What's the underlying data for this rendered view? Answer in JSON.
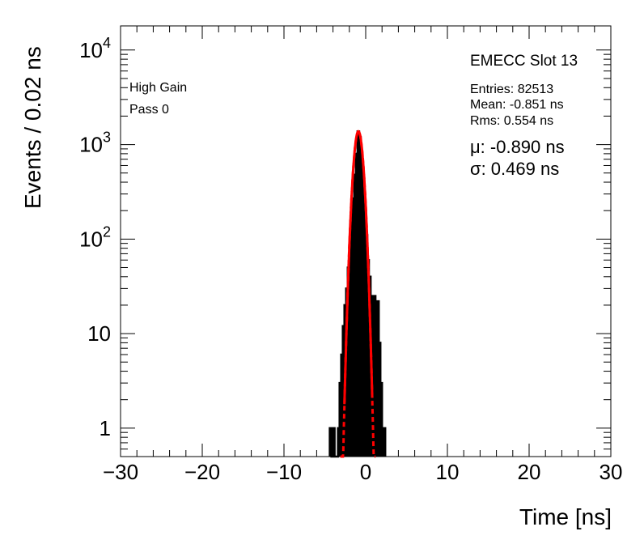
{
  "chart_data": {
    "type": "histogram",
    "title": "EMECC Slot 13",
    "xlabel": "Time [ns]",
    "ylabel": "Events / 0.02 ns",
    "xlim": [
      -30,
      30
    ],
    "ylim": [
      0.5,
      18000
    ],
    "yscale": "log",
    "x_ticks": [
      "−30",
      "−20",
      "−10",
      "0",
      "10",
      "20",
      "30"
    ],
    "x_tick_values": [
      -30,
      -20,
      -10,
      0,
      10,
      20,
      30
    ],
    "y_ticks": [
      {
        "value": 1,
        "label": "1"
      },
      {
        "value": 10,
        "label": "10"
      },
      {
        "value": 100,
        "base": "10",
        "exp": "2"
      },
      {
        "value": 1000,
        "base": "10",
        "exp": "3"
      },
      {
        "value": 10000,
        "base": "10",
        "exp": "4"
      }
    ],
    "annotations_left": [
      "High Gain",
      "Pass 0"
    ],
    "stats": {
      "entries": "Entries: 82513",
      "mean": "Mean: -0.851 ns",
      "rms": "Rms: 0.554 ns"
    },
    "fit": {
      "mu_text": "μ: -0.890 ns",
      "sigma_text": "σ: 0.469 ns",
      "mu": -0.89,
      "sigma": 0.469,
      "amplitude": 1380,
      "color": "#ff0000",
      "solid_range": [
        -2.6,
        0.8
      ],
      "dashed_range": [
        -3.1,
        1.2
      ]
    },
    "histogram": {
      "color": "#000000",
      "points": [
        [
          -4.3,
          1
        ],
        [
          -3.9,
          1
        ],
        [
          -3.3,
          1
        ],
        [
          -3.1,
          3
        ],
        [
          -2.9,
          6
        ],
        [
          -2.7,
          12
        ],
        [
          -2.5,
          20
        ],
        [
          -2.3,
          30
        ],
        [
          -2.1,
          50
        ],
        [
          -1.9,
          80
        ],
        [
          -1.7,
          150
        ],
        [
          -1.5,
          270
        ],
        [
          -1.3,
          480
        ],
        [
          -1.1,
          800
        ],
        [
          -0.9,
          1380
        ],
        [
          -0.7,
          1200
        ],
        [
          -0.5,
          750
        ],
        [
          -0.3,
          380
        ],
        [
          -0.1,
          200
        ],
        [
          0.1,
          110
        ],
        [
          0.3,
          60
        ],
        [
          0.5,
          40
        ],
        [
          0.7,
          25
        ],
        [
          0.9,
          15
        ],
        [
          1.1,
          25
        ],
        [
          1.3,
          18
        ],
        [
          1.5,
          22
        ],
        [
          1.7,
          8
        ],
        [
          1.9,
          3
        ],
        [
          2.1,
          1
        ],
        [
          2.3,
          1
        ]
      ]
    }
  }
}
